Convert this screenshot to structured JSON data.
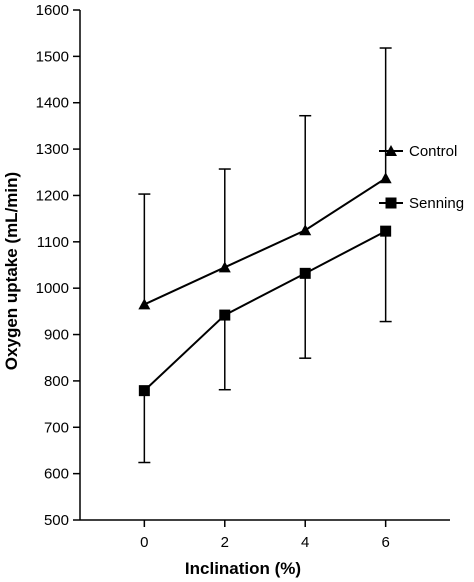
{
  "chart_data": {
    "type": "line",
    "title": "",
    "xlabel": "Inclination (%)",
    "ylabel": "Oxygen uptake (mL/min)",
    "x": [
      0,
      2,
      4,
      6
    ],
    "x_ticks": [
      "0",
      "2",
      "4",
      "6"
    ],
    "xlim": [
      -1.6,
      7.6
    ],
    "ylim": [
      500,
      1600
    ],
    "y_ticks": [
      "500",
      "600",
      "700",
      "800",
      "900",
      "1000",
      "1100",
      "1200",
      "1300",
      "1400",
      "1500",
      "1600"
    ],
    "grid": false,
    "legend_position": "right",
    "series": [
      {
        "name": "Control",
        "marker": "triangle",
        "values": [
          965,
          1045,
          1125,
          1237
        ],
        "error_upper": [
          1203,
          1257,
          1372,
          1518
        ],
        "error_lower": [],
        "color": "#000000"
      },
      {
        "name": "Senning",
        "marker": "square",
        "values": [
          779,
          942,
          1032,
          1123
        ],
        "error_upper": [],
        "error_lower": [
          624,
          781,
          849,
          928
        ],
        "color": "#000000"
      }
    ]
  }
}
